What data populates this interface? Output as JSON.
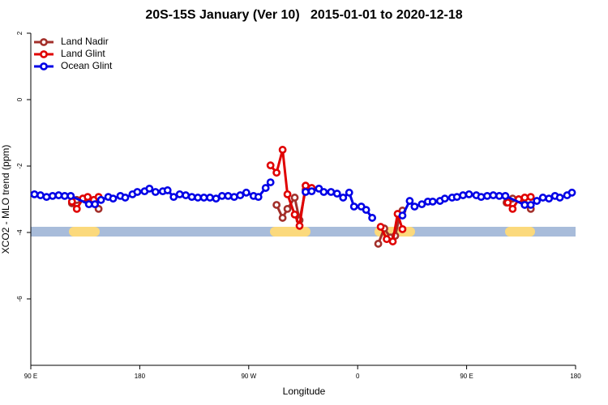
{
  "chart_data": {
    "type": "line",
    "title": "20S-15S January (Ver 10)   2015-01-01 to 2020-12-18",
    "x_label": "Longitude",
    "y_label": "XCO2 - MLO trend (ppm)",
    "xlim": [
      90,
      540
    ],
    "xticks": [
      {
        "value": 90,
        "label": "90 E"
      },
      180,
      {
        "value": 270,
        "label": "90 W"
      },
      {
        "value": 360,
        "label": "0"
      },
      {
        "value": 450,
        "label": "90 E"
      },
      {
        "value": 540,
        "label": "180"
      }
    ],
    "ylim": [
      -8,
      2
    ],
    "yticks": [
      2,
      0,
      -2,
      -4,
      -6
    ],
    "legend": "top-left",
    "series": [
      {
        "name": "Land Nadir",
        "color": "#a3302b",
        "x": [
          124,
          128,
          133,
          138,
          146,
          220,
          293,
          298,
          302,
          308,
          312,
          317,
          350,
          377,
          382,
          387,
          391,
          395,
          397,
          440,
          483,
          488,
          493,
          498,
          503
        ],
        "values": [
          -3.12,
          -3.02,
          -2.98,
          -3.07,
          -3.29,
          null,
          -3.17,
          -3.56,
          -3.29,
          -2.95,
          -3.63,
          -2.71,
          null,
          -4.34,
          -3.88,
          -4.15,
          -4.1,
          -3.46,
          -3.34,
          null,
          -3.1,
          -2.98,
          -3.0,
          -3.15,
          -3.29
        ]
      },
      {
        "name": "Land Glint",
        "color": "#e00000",
        "x": [
          124,
          128,
          133,
          137,
          142,
          146,
          220,
          288,
          293,
          298,
          302,
          308,
          312,
          317,
          322,
          350,
          379,
          384,
          389,
          393,
          397,
          440,
          484,
          488,
          493,
          498,
          503
        ],
        "values": [
          -3.07,
          -3.29,
          -2.98,
          -2.93,
          -3.02,
          -2.93,
          null,
          -1.98,
          -2.2,
          -1.51,
          -2.85,
          -3.46,
          -3.8,
          -2.59,
          -2.66,
          null,
          -3.83,
          -4.2,
          -4.27,
          -3.44,
          -3.9,
          null,
          -3.1,
          -3.29,
          -3.0,
          -2.95,
          -2.93
        ]
      },
      {
        "name": "Ocean Glint",
        "color": "#0000e6",
        "x": [
          93,
          98,
          103,
          108,
          113,
          118,
          123,
          138,
          143,
          148,
          154,
          158,
          164,
          168,
          174,
          178,
          184,
          188,
          193,
          199,
          203,
          208,
          213,
          218,
          223,
          228,
          233,
          238,
          243,
          248,
          253,
          258,
          263,
          268,
          274,
          278,
          284,
          288,
          300,
          317,
          322,
          328,
          332,
          338,
          343,
          348,
          353,
          357,
          363,
          367,
          372,
          385,
          397,
          403,
          407,
          413,
          418,
          422,
          428,
          432,
          438,
          442,
          447,
          452,
          458,
          462,
          467,
          472,
          477,
          482,
          498,
          503,
          508,
          513,
          518,
          523,
          527,
          533,
          537
        ],
        "values": [
          -2.85,
          -2.88,
          -2.93,
          -2.9,
          -2.88,
          -2.9,
          -2.9,
          -3.15,
          -3.15,
          -3.02,
          -2.93,
          -2.98,
          -2.9,
          -2.95,
          -2.85,
          -2.78,
          -2.76,
          -2.68,
          -2.78,
          -2.76,
          -2.73,
          -2.93,
          -2.85,
          -2.88,
          -2.93,
          -2.95,
          -2.95,
          -2.95,
          -2.98,
          -2.9,
          -2.9,
          -2.93,
          -2.88,
          -2.8,
          -2.9,
          -2.93,
          -2.66,
          -2.49,
          null,
          -2.78,
          -2.76,
          -2.68,
          -2.78,
          -2.78,
          -2.83,
          -2.95,
          -2.8,
          -3.22,
          -3.22,
          -3.32,
          -3.56,
          null,
          -3.49,
          -3.05,
          -3.22,
          -3.15,
          -3.07,
          -3.07,
          -3.05,
          -2.98,
          -2.95,
          -2.93,
          -2.88,
          -2.85,
          -2.88,
          -2.93,
          -2.9,
          -2.88,
          -2.9,
          -2.9,
          -3.17,
          -3.17,
          -3.05,
          -2.95,
          -2.98,
          -2.9,
          -2.95,
          -2.88,
          -2.8
        ]
      }
    ]
  }
}
